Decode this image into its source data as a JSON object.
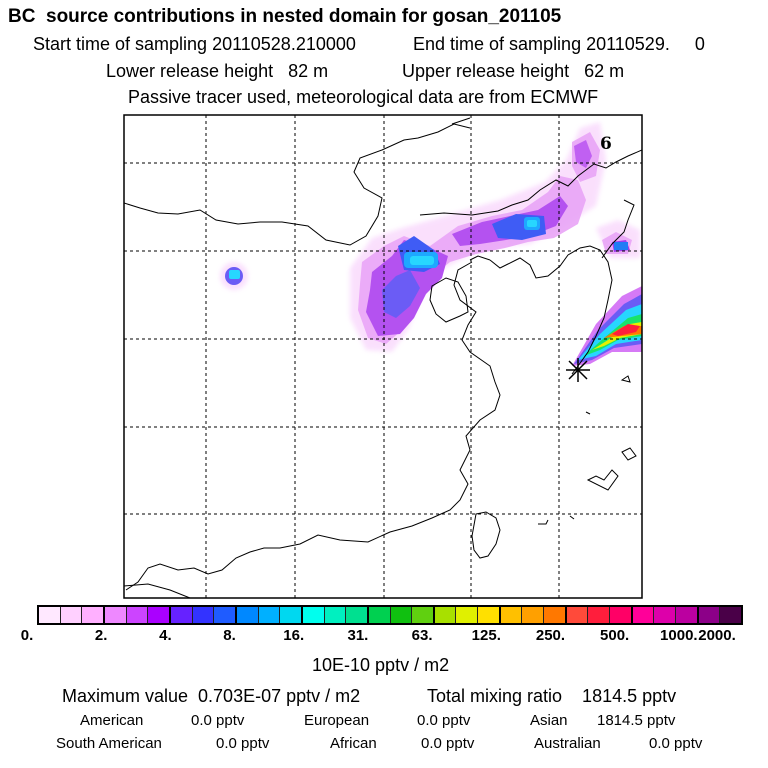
{
  "header": {
    "title": "BC  source contributions in nested domain for gosan_201105",
    "start_sampling": "Start time of sampling 20110528.210000",
    "end_sampling": "End time of sampling 20110529.     0",
    "lower_release": "Lower release height   82 m",
    "upper_release": "Upper release height   62 m",
    "tracer_note": "Passive tracer used, meteorological data are from ECMWF"
  },
  "map": {
    "corner_label": "6",
    "receptor_marker": "asterisk-icon"
  },
  "colorbar": {
    "colors": [
      "#ffe8ff",
      "#ffd0ff",
      "#ffb0ff",
      "#ee88ff",
      "#cc44ff",
      "#aa00ff",
      "#6622ff",
      "#3333ff",
      "#1f5cff",
      "#0088ff",
      "#00b0ff",
      "#00d8f0",
      "#00ffee",
      "#00f0c0",
      "#00e090",
      "#00d050",
      "#10c010",
      "#60d010",
      "#a8e000",
      "#e0f000",
      "#ffe000",
      "#ffc000",
      "#ffa000",
      "#ff7800",
      "#ff4a3a",
      "#ff1e3c",
      "#ff0066",
      "#ff0099",
      "#dd00aa",
      "#bb00a0",
      "#8c0088",
      "#4a0048"
    ],
    "tick_labels": [
      "0.",
      "2.",
      "4.",
      "8.",
      "16.",
      "31.",
      "63.",
      "125.",
      "250.",
      "500.",
      "1000.",
      "2000."
    ],
    "unit": "10E-10 pptv / m2"
  },
  "summary": {
    "max_value": "Maximum value  0.703E-07 pptv / m2",
    "total_mixing": "Total mixing ratio    1814.5 pptv",
    "american_label": "American",
    "american_value": "0.0 pptv",
    "european_label": "European",
    "european_value": "0.0 pptv",
    "asian_label": "Asian",
    "asian_value": "1814.5 pptv",
    "south_american_label": "South American",
    "south_american_value": "0.0 pptv",
    "african_label": "African",
    "african_value": "0.0 pptv",
    "australian_label": "Australian",
    "australian_value": "0.0 pptv"
  }
}
